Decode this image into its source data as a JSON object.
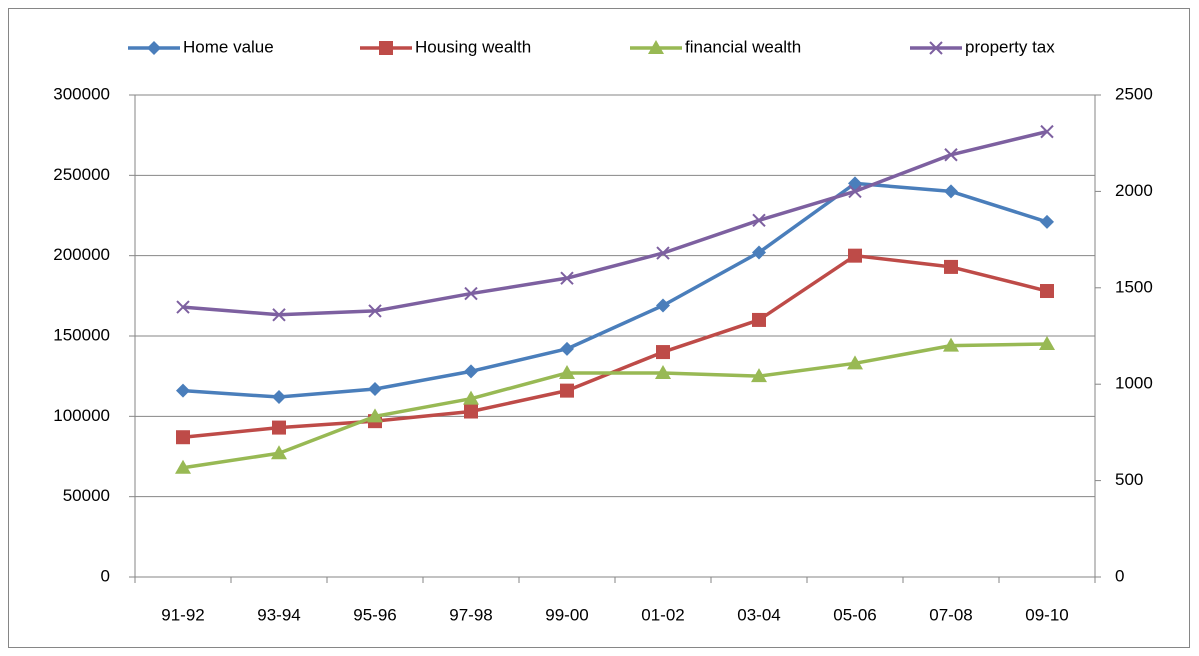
{
  "chart_data": {
    "type": "line",
    "categories": [
      "91-92",
      "93-94",
      "95-96",
      "97-98",
      "99-00",
      "01-02",
      "03-04",
      "05-06",
      "07-08",
      "09-10"
    ],
    "series": [
      {
        "name": "Home value",
        "color": "#4a7ebb",
        "marker": "diamond",
        "values": [
          116000,
          112000,
          117000,
          128000,
          142000,
          169000,
          202000,
          245000,
          240000,
          221000
        ]
      },
      {
        "name": "Housing wealth",
        "color": "#be4b48",
        "marker": "square",
        "values": [
          87000,
          93000,
          97000,
          103000,
          116000,
          140000,
          160000,
          200000,
          193000,
          178000
        ]
      },
      {
        "name": "financial wealth",
        "color": "#98b954",
        "marker": "triangle",
        "values": [
          68000,
          77000,
          100000,
          111000,
          127000,
          127000,
          125000,
          133000,
          144000,
          145000
        ]
      },
      {
        "name": "property tax",
        "color": "#7d60a0",
        "marker": "x",
        "axis": "y2",
        "values": [
          1400,
          1360,
          1380,
          1470,
          1550,
          1680,
          1850,
          2000,
          2190,
          2310
        ]
      }
    ],
    "ylim": [
      0,
      300000
    ],
    "yticks": [
      0,
      50000,
      100000,
      150000,
      200000,
      250000,
      300000
    ],
    "y2lim": [
      0,
      2500
    ],
    "y2ticks": [
      0,
      500,
      1000,
      1500,
      2000,
      2500
    ],
    "grid": true,
    "legend": "top"
  }
}
